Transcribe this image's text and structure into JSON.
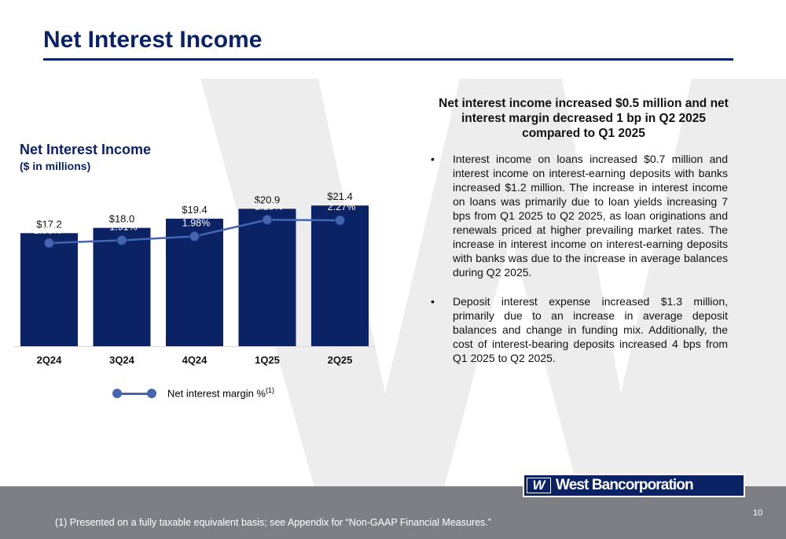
{
  "slide": {
    "title": "Net Interest Income",
    "page_number": "10",
    "footnote": "(1) Presented on a fully taxable equivalent basis; see Appendix for “Non-GAAP Financial Measures.”"
  },
  "logo": {
    "mark": "W",
    "name": "West Bancorporation"
  },
  "colors": {
    "navy": "#0b2265",
    "bar": "#0b2265",
    "line": "#4565b0",
    "footer": "#7e7f84",
    "watermark": "#ededed"
  },
  "summary": "Net interest income increased $0.5 million and net interest margin decreased 1 bp in Q2 2025 compared to Q1 2025",
  "bullets": [
    {
      "mark": "•",
      "text": "Interest income on loans increased $0.7 million and interest income on interest-earning deposits with banks increased $1.2 million. The increase in interest income on loans was primarily due to loan yields increasing 7 bps from Q1 2025 to Q2 2025, as loan originations and renewals priced at higher prevailing market rates. The increase in interest income on interest-earning deposits with banks was due to the increase in average balances during Q2 2025."
    },
    {
      "mark": "•",
      "text": "Deposit interest expense increased $1.3 million, primarily due to an increase in average deposit balances and change in funding mix. Additionally, the cost of interest-bearing deposits increased 4 bps from Q1 2025 to Q2 2025."
    }
  ],
  "chart_data": {
    "type": "bar",
    "title": "Net Interest Income",
    "subtitle": "($ in millions)",
    "categories": [
      "2Q24",
      "3Q24",
      "4Q24",
      "1Q25",
      "2Q25"
    ],
    "series": [
      {
        "name": "Net interest income",
        "type": "bar",
        "values": [
          17.2,
          18.0,
          19.4,
          20.9,
          21.4
        ],
        "labels": [
          "$17.2",
          "$18.0",
          "$19.4",
          "$20.9",
          "$21.4"
        ]
      },
      {
        "name": "Net interest margin %",
        "type": "line",
        "values": [
          1.86,
          1.91,
          1.98,
          2.28,
          2.27
        ],
        "labels": [
          "1.86%",
          "1.91%",
          "1.98%",
          "2.28%",
          "2.27%"
        ]
      }
    ],
    "legend": {
      "label": "Net interest margin %",
      "superscript": "(1)",
      "position": "bottom"
    },
    "ylim_bar": [
      0,
      22.5
    ],
    "ylim_line": [
      0,
      3.05
    ],
    "grid": false
  }
}
